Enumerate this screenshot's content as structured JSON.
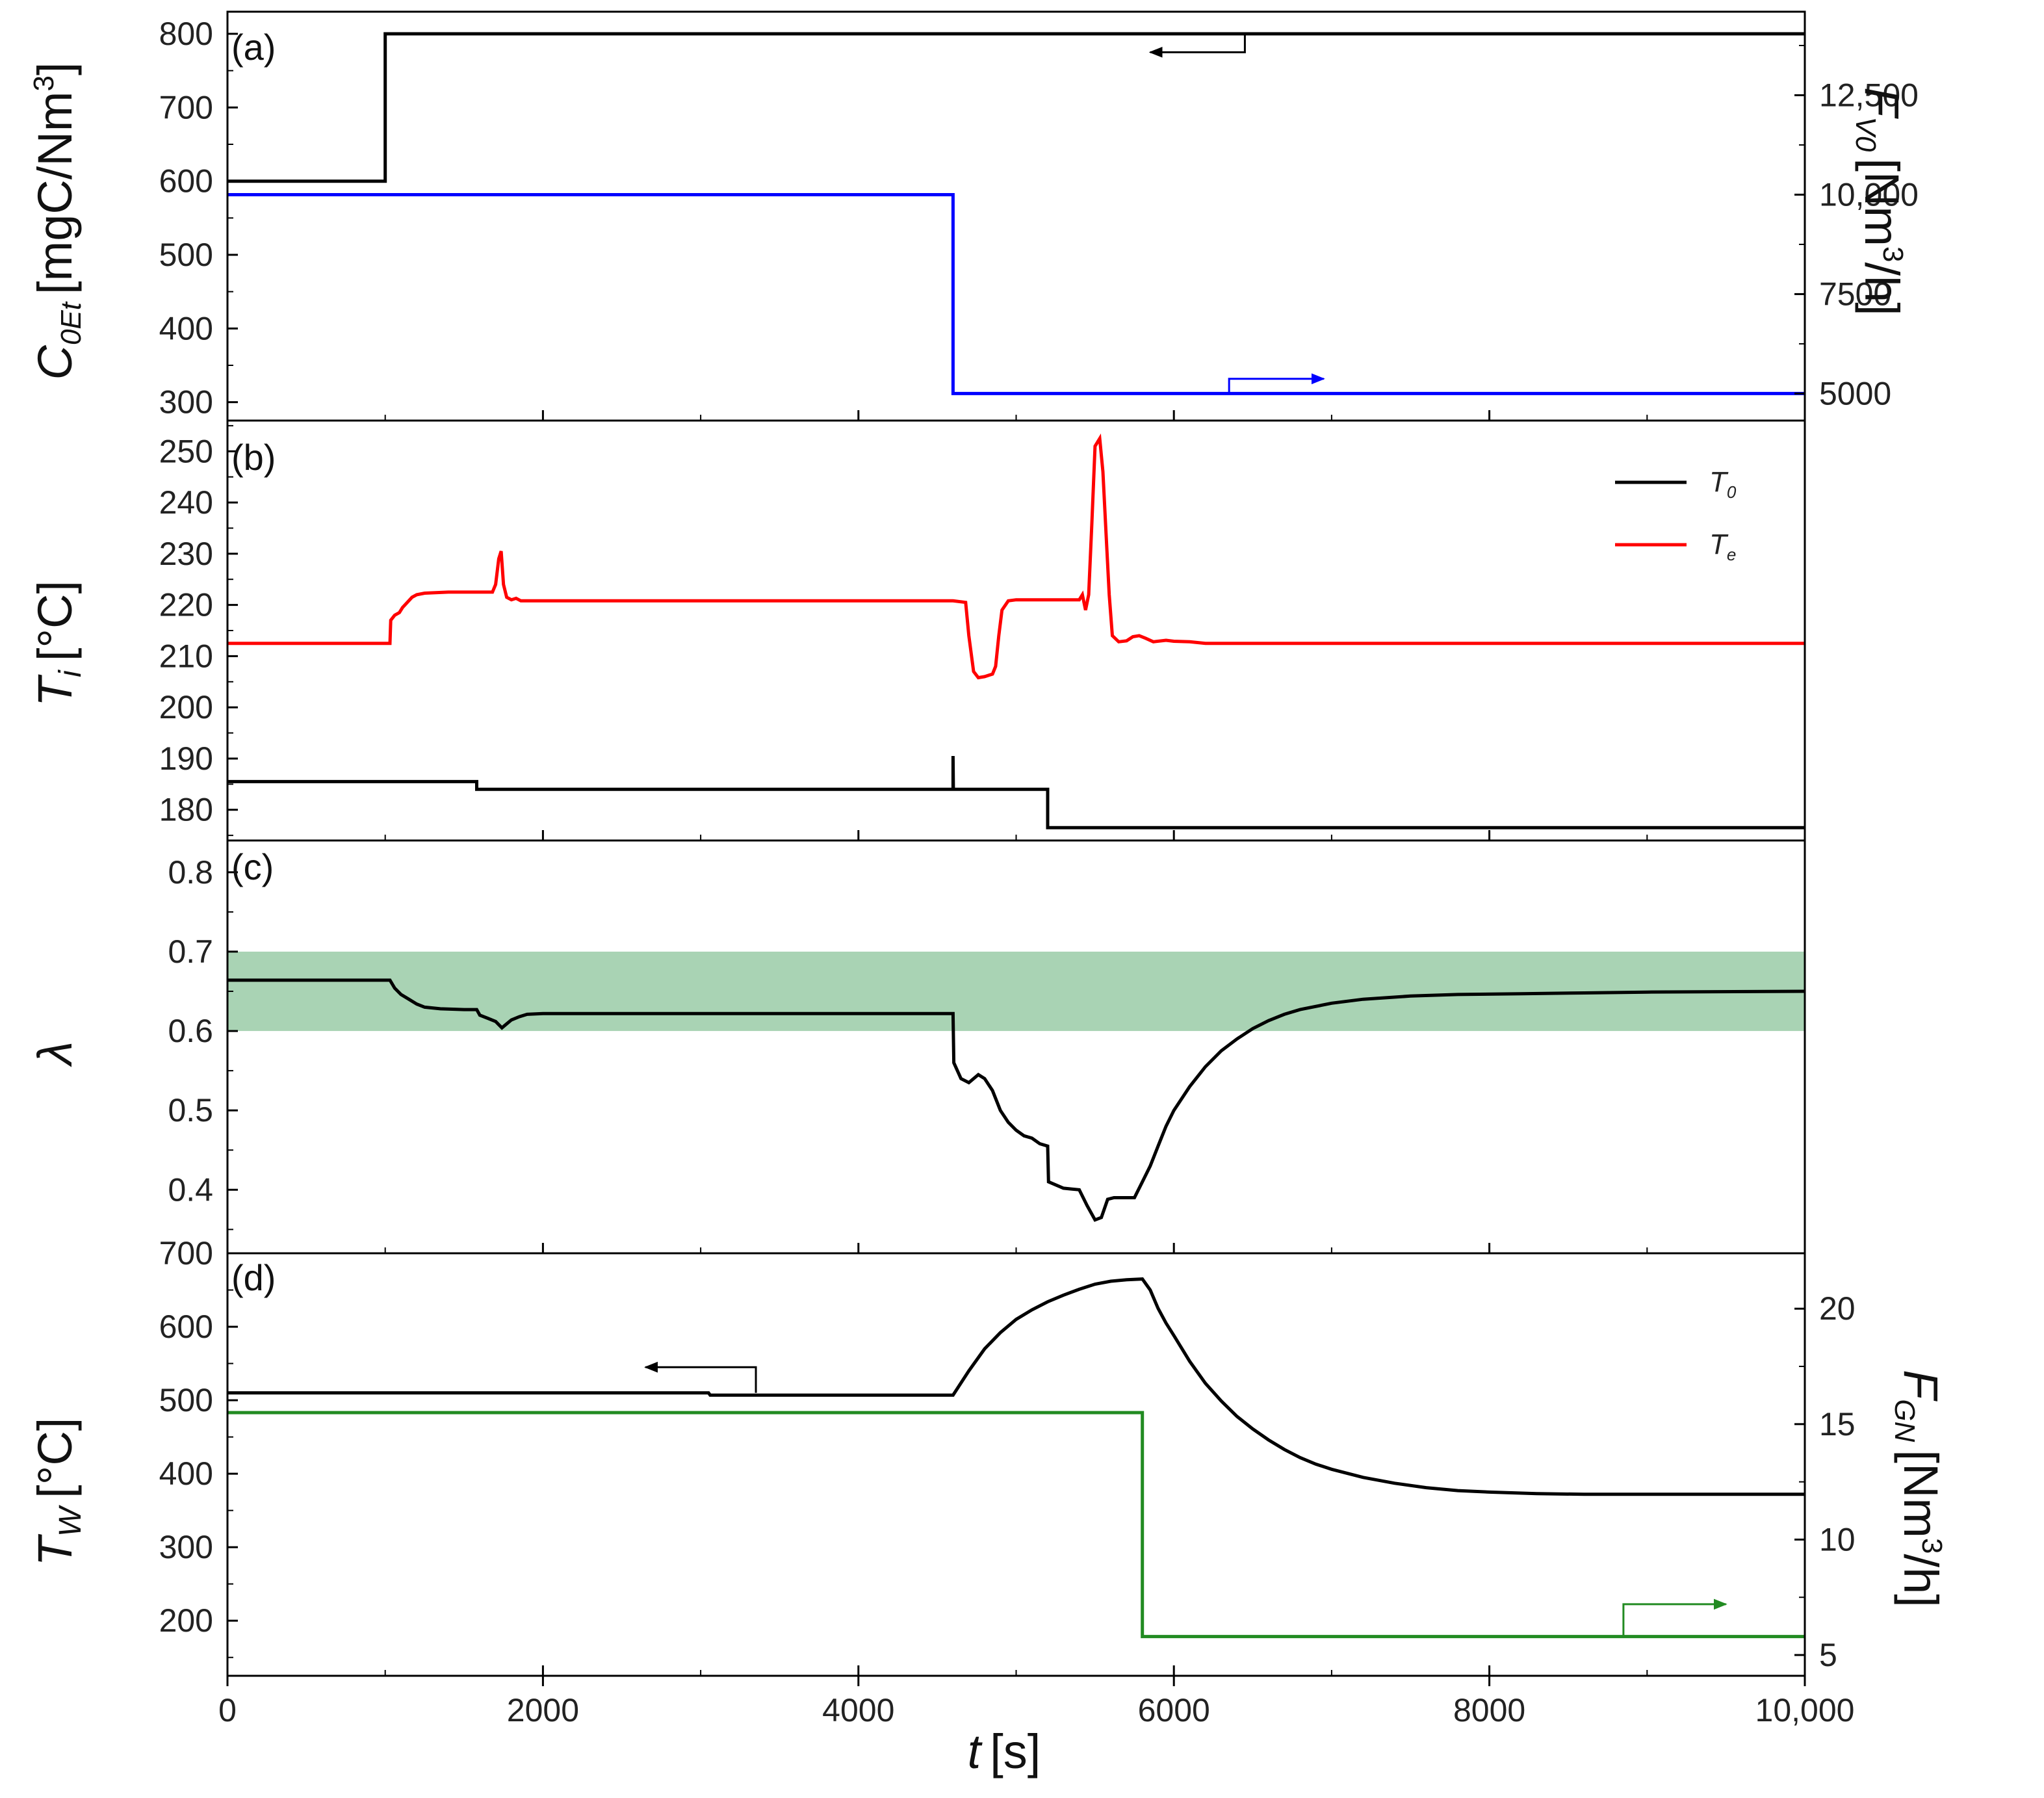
{
  "figure": {
    "xlabel_symbol": "t",
    "xlabel_unit": "[s]"
  },
  "chart_data": [
    {
      "panel": "(a)",
      "type": "line",
      "xlim": [
        0,
        10000
      ],
      "ylim_left": [
        275,
        830
      ],
      "yticks_left": [
        300,
        400,
        500,
        600,
        700,
        800
      ],
      "ylabel_left": {
        "symbol": "C",
        "sub": "0Et",
        "unit": "[mgC/Nm",
        "sup": "3",
        "close": "]"
      },
      "ylim_right": [
        4320,
        14600
      ],
      "yticks_right": [
        5000,
        7500,
        10000,
        12500
      ],
      "ytick_labels_right": [
        "5000",
        "7500",
        "10,000",
        "12,500"
      ],
      "ylabel_right": {
        "symbol": "F",
        "sub": "V0",
        "unit": "[Nm",
        "sup": "3",
        "close": "/h]"
      },
      "series": [
        {
          "name": "C0Et",
          "axis": "left",
          "color": "#000000",
          "step": true,
          "points": [
            [
              0,
              600
            ],
            [
              1000,
              600
            ],
            [
              1000,
              800
            ],
            [
              10000,
              800
            ]
          ]
        },
        {
          "name": "FV0",
          "axis": "right",
          "color": "#0000ff",
          "step": true,
          "points": [
            [
              0,
              10000
            ],
            [
              4600,
              10000
            ],
            [
              4600,
              5000
            ],
            [
              10000,
              5000
            ]
          ]
        }
      ],
      "annotations": [
        {
          "type": "axis-arrow",
          "direction": "left",
          "color": "#000000",
          "x0": 6450,
          "x1": 5850,
          "y": 775,
          "y_top": 800,
          "axis": "left"
        },
        {
          "type": "axis-arrow",
          "direction": "right",
          "color": "#0000ff",
          "x0": 6350,
          "x1": 6950,
          "y": 5370,
          "y_bottom": 5000,
          "axis": "right"
        }
      ]
    },
    {
      "panel": "(b)",
      "type": "line",
      "xlim": [
        0,
        10000
      ],
      "ylim_left": [
        174,
        256
      ],
      "yticks_left": [
        180,
        190,
        200,
        210,
        220,
        230,
        240,
        250
      ],
      "ylabel_left": {
        "symbol": "T",
        "sub": "i",
        "unit": "[°C]"
      },
      "legend": {
        "position": "top-right",
        "entries": [
          {
            "label": "T",
            "sub": "0",
            "color": "#000000"
          },
          {
            "label": "T",
            "sub": "e",
            "color": "#ff0000"
          }
        ]
      },
      "series": [
        {
          "name": "T0",
          "axis": "left",
          "color": "#000000",
          "step": true,
          "points": [
            [
              0,
              185.5
            ],
            [
              1580,
              185.5
            ],
            [
              1580,
              184
            ],
            [
              4600,
              184
            ],
            [
              4600,
              190.5
            ],
            [
              4602,
              184
            ],
            [
              5200,
              184
            ],
            [
              5200,
              176.5
            ],
            [
              10000,
              176.5
            ]
          ]
        },
        {
          "name": "Te",
          "axis": "left",
          "color": "#ff0000",
          "step": false,
          "points": [
            [
              0,
              212.5
            ],
            [
              1030,
              212.5
            ],
            [
              1035,
              217
            ],
            [
              1060,
              218
            ],
            [
              1090,
              218.5
            ],
            [
              1110,
              219.5
            ],
            [
              1140,
              220.5
            ],
            [
              1170,
              221.5
            ],
            [
              1200,
              222
            ],
            [
              1250,
              222.3
            ],
            [
              1400,
              222.5
            ],
            [
              1680,
              222.5
            ],
            [
              1700,
              224
            ],
            [
              1720,
              229
            ],
            [
              1735,
              230.5
            ],
            [
              1750,
              224
            ],
            [
              1770,
              221.5
            ],
            [
              1800,
              221
            ],
            [
              1830,
              221.3
            ],
            [
              1860,
              220.8
            ],
            [
              1900,
              220.8
            ],
            [
              4600,
              220.8
            ],
            [
              4680,
              220.5
            ],
            [
              4700,
              214
            ],
            [
              4730,
              207
            ],
            [
              4760,
              205.8
            ],
            [
              4800,
              206
            ],
            [
              4850,
              206.5
            ],
            [
              4870,
              208
            ],
            [
              4890,
              214
            ],
            [
              4910,
              219
            ],
            [
              4950,
              220.8
            ],
            [
              5000,
              221
            ],
            [
              5400,
              221
            ],
            [
              5420,
              222
            ],
            [
              5440,
              219
            ],
            [
              5460,
              222
            ],
            [
              5480,
              236
            ],
            [
              5500,
              251
            ],
            [
              5530,
              252.5
            ],
            [
              5550,
              246
            ],
            [
              5570,
              234
            ],
            [
              5590,
              222
            ],
            [
              5610,
              214
            ],
            [
              5650,
              212.8
            ],
            [
              5700,
              213
            ],
            [
              5740,
              213.8
            ],
            [
              5780,
              214
            ],
            [
              5820,
              213.5
            ],
            [
              5870,
              212.8
            ],
            [
              5950,
              213.1
            ],
            [
              6000,
              212.9
            ],
            [
              6100,
              212.8
            ],
            [
              6200,
              212.5
            ],
            [
              10000,
              212.5
            ]
          ]
        }
      ]
    },
    {
      "panel": "(c)",
      "type": "line",
      "xlim": [
        0,
        10000
      ],
      "ylim_left": [
        0.32,
        0.84
      ],
      "yticks_left": [
        0.4,
        0.5,
        0.6,
        0.7,
        0.8
      ],
      "ylabel_left": {
        "symbol": "λ"
      },
      "band": {
        "y0": 0.6,
        "y1": 0.7,
        "color": "#a9d3b4"
      },
      "series": [
        {
          "name": "lambda",
          "axis": "left",
          "color": "#000000",
          "step": false,
          "points": [
            [
              0,
              0.664
            ],
            [
              1030,
              0.664
            ],
            [
              1060,
              0.654
            ],
            [
              1100,
              0.646
            ],
            [
              1150,
              0.64
            ],
            [
              1200,
              0.634
            ],
            [
              1250,
              0.63
            ],
            [
              1350,
              0.628
            ],
            [
              1500,
              0.627
            ],
            [
              1580,
              0.627
            ],
            [
              1600,
              0.62
            ],
            [
              1650,
              0.616
            ],
            [
              1700,
              0.612
            ],
            [
              1740,
              0.604
            ],
            [
              1770,
              0.609
            ],
            [
              1800,
              0.614
            ],
            [
              1850,
              0.618
            ],
            [
              1900,
              0.621
            ],
            [
              2000,
              0.622
            ],
            [
              4600,
              0.622
            ],
            [
              4605,
              0.56
            ],
            [
              4650,
              0.54
            ],
            [
              4700,
              0.535
            ],
            [
              4760,
              0.545
            ],
            [
              4800,
              0.54
            ],
            [
              4850,
              0.525
            ],
            [
              4900,
              0.5
            ],
            [
              4950,
              0.485
            ],
            [
              5000,
              0.475
            ],
            [
              5050,
              0.468
            ],
            [
              5100,
              0.465
            ],
            [
              5150,
              0.458
            ],
            [
              5200,
              0.455
            ],
            [
              5205,
              0.41
            ],
            [
              5300,
              0.402
            ],
            [
              5400,
              0.4
            ],
            [
              5450,
              0.38
            ],
            [
              5500,
              0.362
            ],
            [
              5540,
              0.365
            ],
            [
              5580,
              0.388
            ],
            [
              5620,
              0.39
            ],
            [
              5700,
              0.39
            ],
            [
              5750,
              0.39
            ],
            [
              5800,
              0.41
            ],
            [
              5850,
              0.43
            ],
            [
              5900,
              0.455
            ],
            [
              5950,
              0.48
            ],
            [
              6000,
              0.5
            ],
            [
              6100,
              0.53
            ],
            [
              6200,
              0.555
            ],
            [
              6300,
              0.575
            ],
            [
              6400,
              0.59
            ],
            [
              6500,
              0.603
            ],
            [
              6600,
              0.613
            ],
            [
              6700,
              0.621
            ],
            [
              6800,
              0.627
            ],
            [
              7000,
              0.635
            ],
            [
              7200,
              0.64
            ],
            [
              7500,
              0.644
            ],
            [
              7800,
              0.646
            ],
            [
              8200,
              0.647
            ],
            [
              8600,
              0.648
            ],
            [
              9000,
              0.649
            ],
            [
              10000,
              0.65
            ]
          ]
        }
      ]
    },
    {
      "panel": "(d)",
      "type": "line",
      "xlim": [
        0,
        10000
      ],
      "xticks": [
        0,
        2000,
        4000,
        6000,
        8000,
        10000
      ],
      "xtick_labels": [
        "0",
        "2000",
        "4000",
        "6000",
        "8000",
        "10,000"
      ],
      "ylim_left": [
        125,
        700
      ],
      "yticks_left": [
        200,
        300,
        400,
        500,
        600,
        700
      ],
      "ylabel_left": {
        "symbol": "T",
        "sub": "W",
        "unit": "[°C]"
      },
      "ylim_right": [
        4.1,
        22.4
      ],
      "yticks_right": [
        5,
        10,
        15,
        20
      ],
      "ylabel_right": {
        "symbol": "F",
        "sub": "GN",
        "unit": "[Nm",
        "sup": "3",
        "close": "/h]"
      },
      "series": [
        {
          "name": "TW",
          "axis": "left",
          "color": "#000000",
          "step": false,
          "points": [
            [
              0,
              510
            ],
            [
              3050,
              510
            ],
            [
              3060,
              507
            ],
            [
              4600,
              507
            ],
            [
              4700,
              540
            ],
            [
              4800,
              570
            ],
            [
              4900,
              592
            ],
            [
              5000,
              610
            ],
            [
              5100,
              623
            ],
            [
              5200,
              634
            ],
            [
              5300,
              643
            ],
            [
              5400,
              651
            ],
            [
              5500,
              658
            ],
            [
              5600,
              662
            ],
            [
              5700,
              664
            ],
            [
              5800,
              665
            ],
            [
              5850,
              650
            ],
            [
              5900,
              625
            ],
            [
              5950,
              605
            ],
            [
              6000,
              588
            ],
            [
              6100,
              553
            ],
            [
              6200,
              523
            ],
            [
              6300,
              499
            ],
            [
              6400,
              478
            ],
            [
              6500,
              461
            ],
            [
              6600,
              446
            ],
            [
              6700,
              433
            ],
            [
              6800,
              422
            ],
            [
              6900,
              413
            ],
            [
              7000,
              406
            ],
            [
              7200,
              395
            ],
            [
              7400,
              387
            ],
            [
              7600,
              381
            ],
            [
              7800,
              377
            ],
            [
              8000,
              375
            ],
            [
              8300,
              373
            ],
            [
              8600,
              372
            ],
            [
              10000,
              372
            ]
          ]
        },
        {
          "name": "FGN",
          "axis": "right",
          "color": "#228b22",
          "step": true,
          "points": [
            [
              0,
              15.5
            ],
            [
              5800,
              15.5
            ],
            [
              5800,
              5.8
            ],
            [
              10000,
              5.8
            ]
          ]
        }
      ],
      "annotations": [
        {
          "type": "axis-arrow",
          "direction": "left",
          "color": "#000000",
          "x0": 3350,
          "x1": 2650,
          "y": 545,
          "y_bottom": 510,
          "axis": "left"
        },
        {
          "type": "axis-arrow",
          "direction": "right",
          "color": "#228b22",
          "x0": 8850,
          "x1": 9500,
          "y": 7.2,
          "y_bottom": 5.8,
          "axis": "right"
        }
      ]
    }
  ]
}
